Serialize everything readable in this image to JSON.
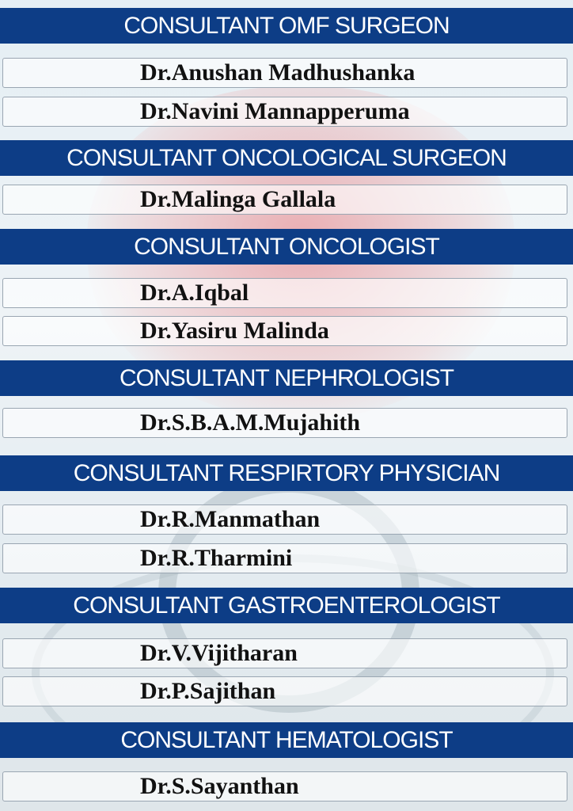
{
  "sections": [
    {
      "title": "CONSULTANT OMF SURGEON",
      "doctors": [
        "Dr.Anushan Madhushanka",
        "Dr.Navini Mannapperuma"
      ]
    },
    {
      "title": "CONSULTANT ONCOLOGICAL SURGEON",
      "doctors": [
        "Dr.Malinga Gallala"
      ]
    },
    {
      "title": "CONSULTANT ONCOLOGIST",
      "doctors": [
        "Dr.A.Iqbal",
        "Dr.Yasiru Malinda"
      ]
    },
    {
      "title": "CONSULTANT NEPHROLOGIST",
      "doctors": [
        "Dr.S.B.A.M.Mujahith"
      ]
    },
    {
      "title": "CONSULTANT RESPIRTORY PHYSICIAN",
      "doctors": [
        "Dr.R.Manmathan",
        "Dr.R.Tharmini"
      ]
    },
    {
      "title": "CONSULTANT GASTROENTEROLOGIST",
      "doctors": [
        "Dr.V.Vijitharan",
        "Dr.P.Sajithan"
      ]
    },
    {
      "title": "CONSULTANT HEMATOLOGIST",
      "doctors": [
        "Dr.S.Sayanthan"
      ]
    }
  ],
  "colors": {
    "header_bar": "#0d3d86",
    "header_text": "#ffffff",
    "name_text": "#111111"
  }
}
